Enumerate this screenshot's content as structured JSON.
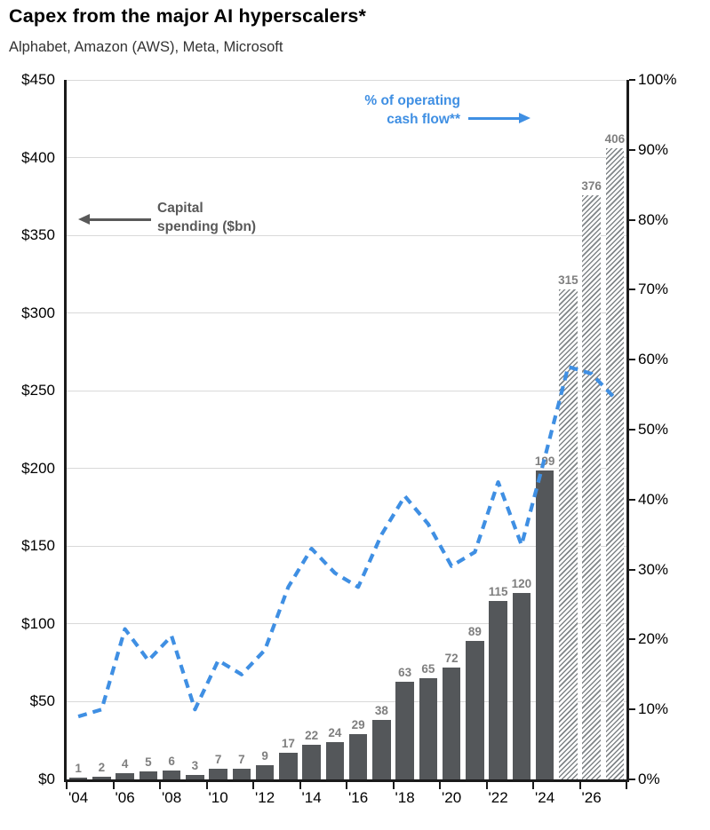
{
  "title": "Capex from the major AI hyperscalers*",
  "subtitle": "Alphabet, Amazon (AWS), Meta, Microsoft",
  "annotations": {
    "line_series": {
      "line1": "% of operating",
      "line2": "cash flow**"
    },
    "bar_series": {
      "line1": "Capital",
      "line2": "spending ($bn)"
    }
  },
  "chart_data": {
    "type": "combo (bar + line)",
    "categories": [
      "2004",
      "2005",
      "2006",
      "2007",
      "2008",
      "2009",
      "2010",
      "2011",
      "2012",
      "2013",
      "2014",
      "2015",
      "2016",
      "2017",
      "2018",
      "2019",
      "2020",
      "2021",
      "2022",
      "2023",
      "2024",
      "2025",
      "2026",
      "2027"
    ],
    "x_tick_labels": [
      "'04",
      "'06",
      "'08",
      "'10",
      "'12",
      "'14",
      "'16",
      "'18",
      "'20",
      "'22",
      "'24",
      "'26"
    ],
    "series": [
      {
        "name": "Capital spending ($bn)",
        "type": "bar",
        "axis": "left",
        "values": [
          1,
          2,
          4,
          5,
          6,
          3,
          7,
          7,
          9,
          17,
          22,
          24,
          29,
          38,
          63,
          65,
          72,
          89,
          115,
          120,
          199,
          315,
          376,
          406
        ],
        "forecast_start_index": 21,
        "note": "forecast bars (2025-2027) drawn with diagonal hatching"
      },
      {
        "name": "% of operating cash flow**",
        "type": "line",
        "style": "dashed",
        "axis": "right",
        "values": [
          9,
          10,
          21.5,
          17,
          20.5,
          10,
          17,
          15,
          18.5,
          27.5,
          33,
          29.5,
          27.5,
          35,
          40.5,
          36.5,
          30.5,
          32.5,
          42.5,
          33.5,
          46,
          59,
          58,
          54.5
        ]
      }
    ],
    "left_axis": {
      "min": 0,
      "max": 450,
      "step": 50,
      "tick_labels": [
        "$0",
        "$50",
        "$100",
        "$150",
        "$200",
        "$250",
        "$300",
        "$350",
        "$400",
        "$450"
      ]
    },
    "right_axis": {
      "min": 0,
      "max": 100,
      "step": 10,
      "tick_labels": [
        "0%",
        "10%",
        "20%",
        "30%",
        "40%",
        "50%",
        "60%",
        "70%",
        "80%",
        "90%",
        "100%"
      ]
    },
    "grid": true,
    "legend_position": "in-chart annotations with arrows",
    "colors": {
      "bar": "#54575a",
      "bar_forecast_hatch": "#7f8487",
      "line": "#3f8fe3",
      "bar_value_label": "#7f7f7f",
      "annotation_gray": "#595959",
      "gridline": "#d9d9d9",
      "axis": "#1a1a1a"
    }
  }
}
